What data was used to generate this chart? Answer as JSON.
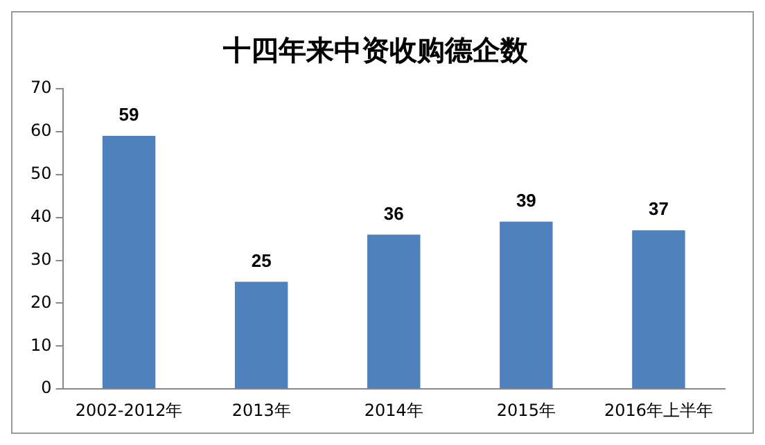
{
  "chart_data": {
    "type": "bar",
    "title": "十四年来中资收购德企数",
    "categories": [
      "2002-2012年",
      "2013年",
      "2014年",
      "2015年",
      "2016年上半年"
    ],
    "values": [
      59,
      25,
      36,
      39,
      37
    ],
    "color": "#4f81bd",
    "ylim": [
      0,
      70
    ],
    "yticks": [
      0,
      10,
      20,
      30,
      40,
      50,
      60,
      70
    ],
    "grid": false,
    "data_labels": true
  }
}
